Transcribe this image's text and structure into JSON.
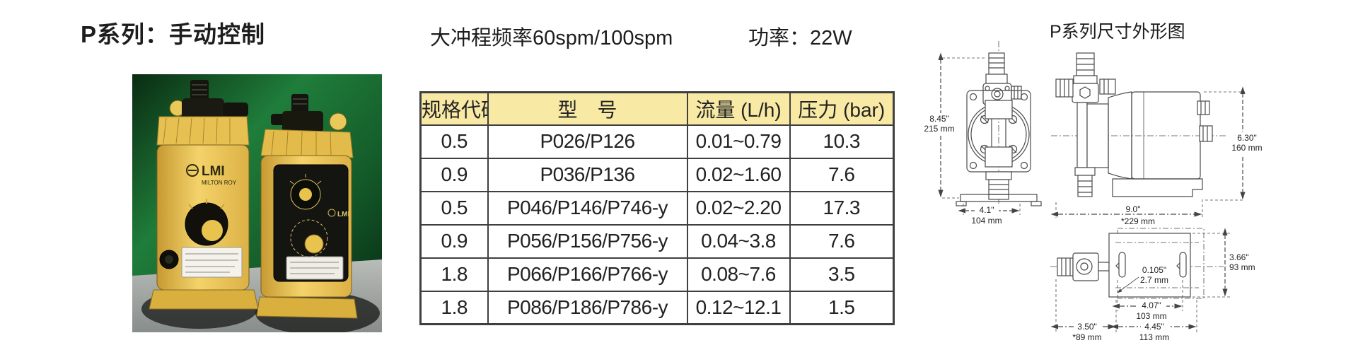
{
  "page": {
    "title": "P系列：手动控制",
    "spec_freq_label": "大冲程频率",
    "spec_freq_value": "60spm/100spm",
    "power_label": "功率：",
    "power_value": "22W",
    "drawing_title": "P系列尺寸外形图"
  },
  "table": {
    "headers": [
      "规格代码",
      "型　号",
      "流量 (L/h)",
      "压力 (bar)"
    ],
    "rows": [
      [
        "0.5",
        "P026/P126",
        "0.01~0.79",
        "10.3"
      ],
      [
        "0.9",
        "P036/P136",
        "0.02~1.60",
        "7.6"
      ],
      [
        "0.5",
        "P046/P146/P746-y",
        "0.02~2.20",
        "17.3"
      ],
      [
        "0.9",
        "P056/P156/P756-y",
        "0.04~3.8",
        "7.6"
      ],
      [
        "1.8",
        "P066/P166/P766-y",
        "0.08~7.6",
        "3.5"
      ],
      [
        "1.8",
        "P086/P186/P786-y",
        "0.12~12.1",
        "1.5"
      ]
    ]
  },
  "photo": {
    "brand": "LMI",
    "brand_sub": "MILTON ROY",
    "brand_right": "LMI"
  },
  "dimensions": {
    "front_height": [
      "8.45\"",
      "215 mm"
    ],
    "front_width": [
      "4.1\"",
      "104 mm"
    ],
    "side_height": [
      "6.30\"",
      "160 mm"
    ],
    "side_width": [
      "9.0\"",
      "*229 mm"
    ],
    "top_slot": [
      "0.105\"",
      "2.7 mm"
    ],
    "top_height": [
      "3.66\"",
      "93 mm"
    ],
    "top_inner_width": [
      "4.07\"",
      "103 mm"
    ],
    "top_left_width": [
      "3.50\"",
      "*89 mm"
    ],
    "top_right_width": [
      "4.45\"",
      "113 mm"
    ]
  },
  "colors": {
    "table_header_bg": "#f8e9a4",
    "table_border": "#3f3f3f",
    "pump_yellow": "#e9c254",
    "photo_green": "#1f7d3a",
    "line_color": "#4a4a4a"
  }
}
